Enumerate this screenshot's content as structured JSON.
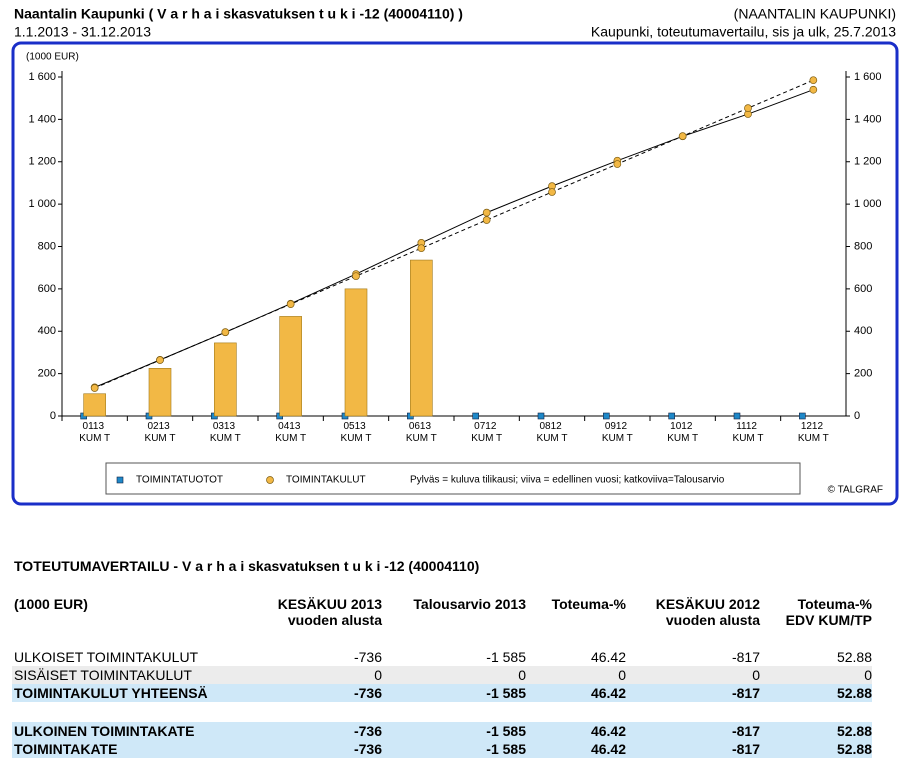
{
  "header": {
    "title": "Naantalin Kaupunki ( V a r h a i skasvatuksen t u k i  -12 (40004110) )",
    "organization": "(NAANTALIN KAUPUNKI)",
    "period": "1.1.2013 - 31.12.2013",
    "report": "Kaupunki, toteutumavertailu, sis ja ulk, 25.7.2013"
  },
  "chart_data": {
    "type": "bar",
    "unit_label": "(1000 EUR)",
    "categories": [
      "0113 KUM T",
      "0213 KUM T",
      "0313 KUM T",
      "0413 KUM T",
      "0513 KUM T",
      "0613 KUM T",
      "0712 KUM T",
      "0812 KUM T",
      "0912 KUM T",
      "1012 KUM T",
      "1112 KUM T",
      "1212 KUM T"
    ],
    "series": [
      {
        "name": "TOIMINTATUOTOT",
        "color": "#1e88c8",
        "marker": "square",
        "values": [
          0,
          0,
          0,
          0,
          0,
          0,
          0,
          0,
          0,
          0,
          0,
          0
        ]
      },
      {
        "name": "TOIMINTAKULUT",
        "color": "#f2b845",
        "marker": "circle",
        "values": [
          105,
          225,
          345,
          470,
          600,
          736,
          null,
          null,
          null,
          null,
          null,
          null
        ]
      }
    ],
    "lines": [
      {
        "style": "solid",
        "color": "#000000",
        "marker_color": "#f2b845",
        "values": [
          135,
          265,
          395,
          530,
          670,
          817,
          960,
          1085,
          1205,
          1320,
          1425,
          1540
        ]
      },
      {
        "style": "dashed",
        "color": "#000000",
        "marker_color": "#f2b845",
        "values": [
          132,
          264,
          396,
          528,
          660,
          792,
          925,
          1057,
          1189,
          1321,
          1453,
          1585
        ]
      }
    ],
    "ylim": [
      0,
      1600
    ],
    "yticks": [
      0,
      200,
      400,
      600,
      800,
      {
        "value": 1000,
        "label": "1 000"
      },
      {
        "value": 1200,
        "label": "1 200"
      },
      {
        "value": 1400,
        "label": "1 400"
      },
      {
        "value": 1600,
        "label": "1 600"
      }
    ],
    "note": "Pylväs = kuluva tilikausi; viiva = edellinen vuosi; katkoviiva=Talousarvio",
    "credit": "© TALGRAF"
  },
  "table": {
    "title": "TOTEUTUMAVERTAILU - V a r h a i skasvatuksen t u k i  -12 (40004110)",
    "header": [
      [
        "(1000 EUR)"
      ],
      [
        "KESÄKUU 2013",
        "vuoden alusta"
      ],
      [
        "Talousarvio 2013"
      ],
      [
        "Toteuma-%"
      ],
      [
        "KESÄKUU 2012",
        "vuoden alusta"
      ],
      [
        "Toteuma-%",
        "EDV KUM/TP"
      ]
    ],
    "groups": [
      [
        {
          "style": "plain",
          "label": "ULKOISET TOIMINTAKULUT",
          "cells": [
            "-736",
            "-1 585",
            "46.42",
            "-817",
            "52.88"
          ]
        },
        {
          "style": "grey",
          "label": "SISÄISET TOIMINTAKULUT",
          "cells": [
            "0",
            "0",
            "0",
            "0",
            "0"
          ]
        },
        {
          "style": "total",
          "label": "TOIMINTAKULUT YHTEENSÄ",
          "cells": [
            "-736",
            "-1 585",
            "46.42",
            "-817",
            "52.88"
          ]
        }
      ],
      [
        {
          "style": "total",
          "label": "ULKOINEN TOIMINTAKATE",
          "cells": [
            "-736",
            "-1 585",
            "46.42",
            "-817",
            "52.88"
          ]
        },
        {
          "style": "total",
          "label": "TOIMINTAKATE",
          "cells": [
            "-736",
            "-1 585",
            "46.42",
            "-817",
            "52.88"
          ]
        }
      ]
    ]
  }
}
